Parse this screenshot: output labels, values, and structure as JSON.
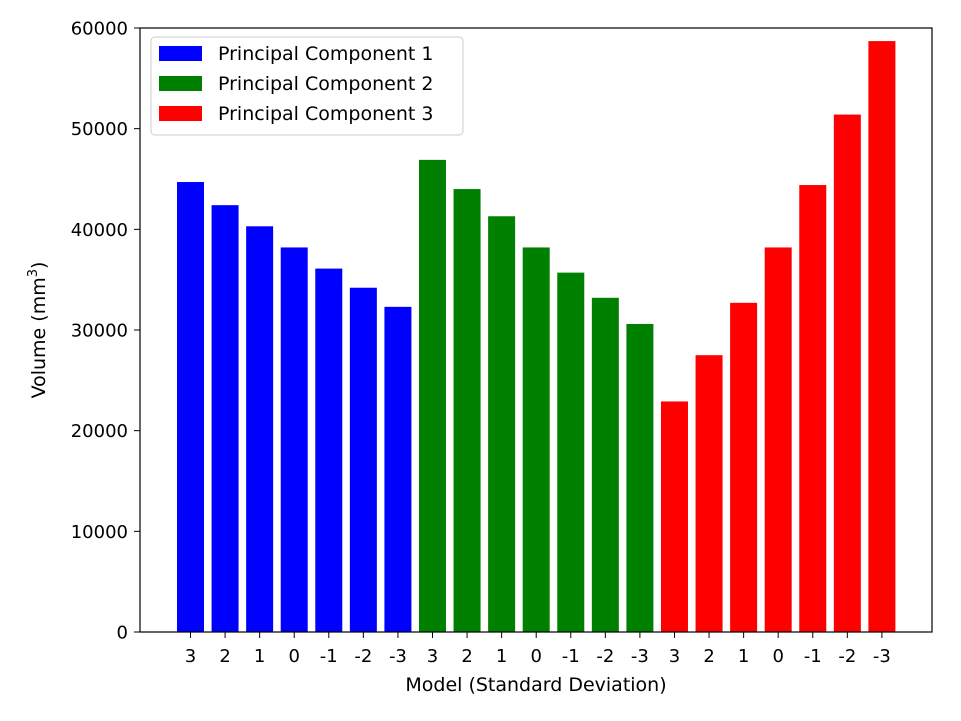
{
  "chart_data": {
    "type": "bar",
    "xlabel": "Model (Standard Deviation)",
    "ylabel_main": "Volume (mm",
    "ylabel_sup": "3",
    "ylabel_close": ")",
    "ylim": [
      0,
      60000
    ],
    "yticks": [
      0,
      10000,
      20000,
      30000,
      40000,
      50000,
      60000
    ],
    "legend_position": "top-left",
    "grid": false,
    "series": [
      {
        "name": "Principal Component 1",
        "color": "#0000ff",
        "categories": [
          "3",
          "2",
          "1",
          "0",
          "-1",
          "-2",
          "-3"
        ],
        "values": [
          44700,
          42400,
          40300,
          38200,
          36100,
          34200,
          32300
        ]
      },
      {
        "name": "Principal Component 2",
        "color": "#008000",
        "categories": [
          "3",
          "2",
          "1",
          "0",
          "-1",
          "-2",
          "-3"
        ],
        "values": [
          46900,
          44000,
          41300,
          38200,
          35700,
          33200,
          30600
        ]
      },
      {
        "name": "Principal Component 3",
        "color": "#ff0000",
        "categories": [
          "3",
          "2",
          "1",
          "0",
          "-1",
          "-2",
          "-3"
        ],
        "values": [
          22900,
          27500,
          32700,
          38200,
          44400,
          51400,
          58700
        ]
      }
    ]
  }
}
